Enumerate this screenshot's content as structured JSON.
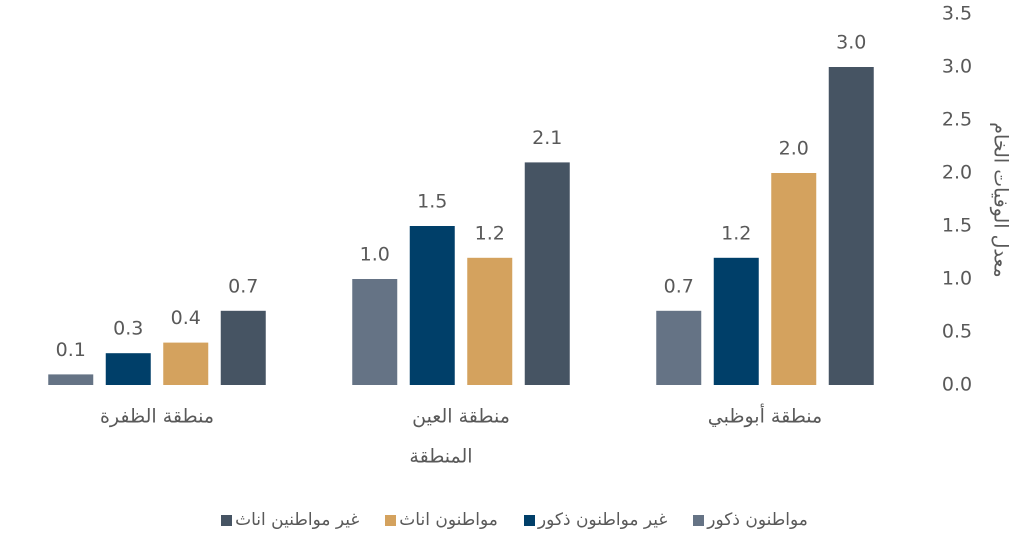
{
  "chart_data": {
    "type": "bar",
    "x_label": "المنطقة",
    "y_label": "معدل الوفيات الخام",
    "categories": [
      "منطقة أبوظبي",
      "منطقة العين",
      "منطقة الظفرة"
    ],
    "series": [
      {
        "name": "مواطنون ذكور",
        "color": "#657385",
        "values": [
          0.7,
          1.0,
          0.1
        ],
        "value_labels": [
          "0.7",
          "1.0",
          "0.1"
        ]
      },
      {
        "name": "غير مواطنون ذكور",
        "color": "#003f69",
        "values": [
          1.2,
          1.5,
          0.3
        ],
        "value_labels": [
          "1.2",
          "1.5",
          "0.3"
        ]
      },
      {
        "name": "مواطنون اناث",
        "color": "#d4a25e",
        "values": [
          2.0,
          1.2,
          0.4
        ],
        "value_labels": [
          "2.0",
          "1.2",
          "0.4"
        ]
      },
      {
        "name": "غير مواطنين اناث",
        "color": "#465463",
        "values": [
          3.0,
          2.1,
          0.7
        ],
        "value_labels": [
          "3.0",
          "2.1",
          "0.7"
        ]
      }
    ],
    "ylim": [
      0,
      3.5
    ],
    "yticks": [
      {
        "value": 0,
        "label": "0.0"
      },
      0.5,
      {
        "value": 1,
        "label": "1.0"
      },
      1.5,
      {
        "value": 2,
        "label": "2.0"
      },
      2.5,
      {
        "value": 3,
        "label": "3.0"
      },
      3.5
    ],
    "y_axis_side": "right",
    "x_reversed": true,
    "grid": false
  }
}
